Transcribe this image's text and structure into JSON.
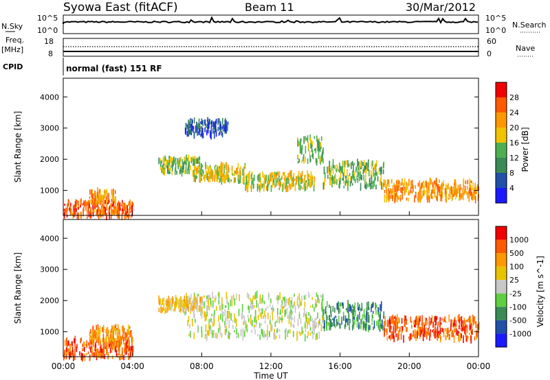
{
  "header": {
    "title": "Syowa East (fitACF)",
    "beam": "Beam 11",
    "date": "30/Mar/2012"
  },
  "top_panels": {
    "nsky_label": "N.Sky",
    "nsky_tick_high": "10^5",
    "nsky_tick_low": "10^0",
    "nsearch_label": "N.Search",
    "nsearch_tick_high": "10^5",
    "nsearch_tick_low": "10^0",
    "freq_label_1": "Freq.",
    "freq_label_2": "[MHz]",
    "freq_ticks": [
      "18",
      "8"
    ],
    "nave_label": "Nave",
    "nave_ticks": [
      "60",
      "0"
    ],
    "cpid_label": "CPID",
    "cpid_value": "normal (fast) 151 RF"
  },
  "colors": {
    "power_scale": [
      "#1a1aff",
      "#2050a8",
      "#3a8a55",
      "#4caf50",
      "#f2c200",
      "#ff9800",
      "#ff5a00",
      "#f00000"
    ],
    "velocity_scale": [
      "#1a1aff",
      "#2050a8",
      "#3a8a55",
      "#5fcf40",
      "#c8c8c8",
      "#e9c200",
      "#ff9800",
      "#ff5a00",
      "#f00000"
    ]
  },
  "chart_data": [
    {
      "type": "heatmap",
      "name": "power",
      "ylabel": "Slant Range [km]",
      "ylim": [
        200,
        4600
      ],
      "yticks": [
        "1000",
        "2000",
        "3000",
        "4000"
      ],
      "xlim_hours": [
        0,
        24
      ],
      "colorbar_label": "Power [dB]",
      "colorbar_ticks": [
        "28",
        "24",
        "20",
        "16",
        "12",
        "8",
        "4"
      ],
      "scatter_bands": [
        {
          "t_start": 0.0,
          "t_end": 4.0,
          "range_center": 400,
          "range_halfwidth": 250,
          "level": 6
        },
        {
          "t_start": 1.5,
          "t_end": 3.0,
          "range_center": 800,
          "range_halfwidth": 200,
          "level": 5
        },
        {
          "t_start": 5.5,
          "t_end": 8.0,
          "range_center": 1800,
          "range_halfwidth": 250,
          "level": 3
        },
        {
          "t_start": 7.5,
          "t_end": 10.5,
          "range_center": 1550,
          "range_halfwidth": 250,
          "level": 4
        },
        {
          "t_start": 10.5,
          "t_end": 14.5,
          "range_center": 1300,
          "range_halfwidth": 250,
          "level": 4
        },
        {
          "t_start": 13.5,
          "t_end": 15.0,
          "range_center": 2300,
          "range_halfwidth": 400,
          "level": 3
        },
        {
          "t_start": 15.0,
          "t_end": 18.5,
          "range_center": 1500,
          "range_halfwidth": 400,
          "level": 3
        },
        {
          "t_start": 18.5,
          "t_end": 24.0,
          "range_center": 1000,
          "range_halfwidth": 300,
          "level": 5
        },
        {
          "t_start": 7.0,
          "t_end": 9.5,
          "range_center": 3000,
          "range_halfwidth": 250,
          "level": 1
        }
      ]
    },
    {
      "type": "heatmap",
      "name": "velocity",
      "ylabel": "Slant Range [km]",
      "ylim": [
        200,
        4600
      ],
      "yticks": [
        "1000",
        "2000",
        "3000",
        "4000"
      ],
      "xlabel": "Time UT",
      "xticks": [
        "00:00",
        "04:00",
        "08:00",
        "12:00",
        "16:00",
        "20:00",
        "00:00"
      ],
      "colorbar_label": "Velocity [m s^-1]",
      "colorbar_ticks": [
        "1000",
        "500",
        "100",
        "25",
        "-25",
        "-100",
        "-500",
        "-1000"
      ],
      "scatter_bands": [
        {
          "t_start": 0.0,
          "t_end": 4.0,
          "range_center": 450,
          "range_halfwidth": 300,
          "level": 7
        },
        {
          "t_start": 1.5,
          "t_end": 4.0,
          "range_center": 900,
          "range_halfwidth": 250,
          "level": 6
        },
        {
          "t_start": 5.5,
          "t_end": 8.0,
          "range_center": 1850,
          "range_halfwidth": 200,
          "level": 5
        },
        {
          "t_start": 7.0,
          "t_end": 15.0,
          "range_center": 1500,
          "range_halfwidth": 700,
          "level": 4
        },
        {
          "t_start": 15.0,
          "t_end": 18.5,
          "range_center": 1500,
          "range_halfwidth": 400,
          "level": 2
        },
        {
          "t_start": 18.5,
          "t_end": 24.0,
          "range_center": 1100,
          "range_halfwidth": 350,
          "level": 7
        }
      ]
    }
  ]
}
